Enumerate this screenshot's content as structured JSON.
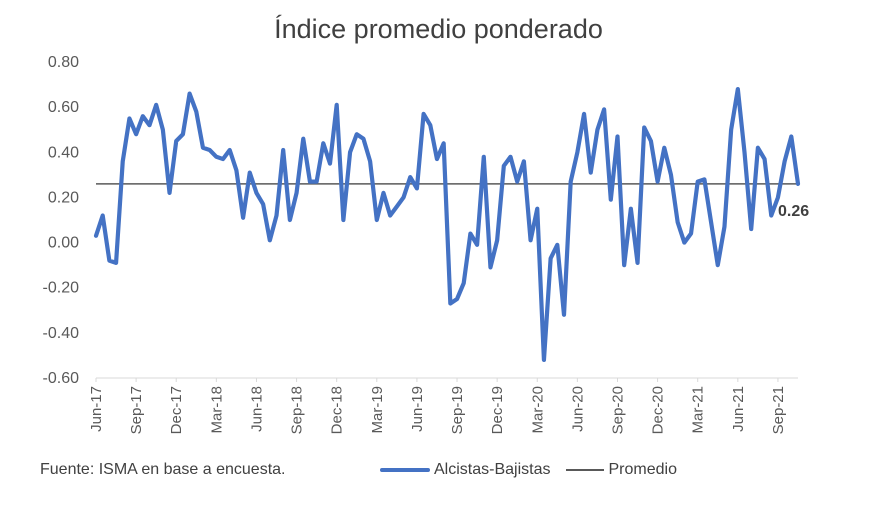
{
  "chart_data": {
    "type": "line",
    "title": "Índice promedio ponderado",
    "ylim": [
      -0.6,
      0.8
    ],
    "y_ticks": [
      "0.80",
      "0.60",
      "0.40",
      "0.20",
      "0.00",
      "-0.20",
      "-0.40",
      "-0.60"
    ],
    "y_tick_values": [
      0.8,
      0.6,
      0.4,
      0.2,
      0.0,
      -0.2,
      -0.4,
      -0.6
    ],
    "x_tick_labels": [
      "Jun-17",
      "Sep-17",
      "Dec-17",
      "Mar-18",
      "Jun-18",
      "Sep-18",
      "Dec-18",
      "Mar-19",
      "Jun-19",
      "Sep-19",
      "Dec-19",
      "Mar-20",
      "Jun-20",
      "Sep-20",
      "Dec-20",
      "Mar-21",
      "Jun-21",
      "Sep-21"
    ],
    "series": [
      {
        "name": "Alcistas-Bajistas",
        "color": "#4472C4",
        "values": [
          0.03,
          0.12,
          -0.08,
          -0.09,
          0.36,
          0.55,
          0.48,
          0.56,
          0.52,
          0.61,
          0.5,
          0.22,
          0.45,
          0.48,
          0.66,
          0.58,
          0.42,
          0.41,
          0.38,
          0.37,
          0.41,
          0.32,
          0.11,
          0.31,
          0.22,
          0.17,
          0.01,
          0.12,
          0.41,
          0.1,
          0.22,
          0.46,
          0.27,
          0.27,
          0.44,
          0.35,
          0.61,
          0.1,
          0.4,
          0.48,
          0.46,
          0.36,
          0.1,
          0.22,
          0.12,
          0.16,
          0.2,
          0.29,
          0.24,
          0.57,
          0.52,
          0.37,
          0.44,
          -0.27,
          -0.25,
          -0.18,
          0.04,
          -0.01,
          0.38,
          -0.11,
          0.01,
          0.34,
          0.38,
          0.27,
          0.36,
          0.01,
          0.15,
          -0.52,
          -0.07,
          -0.01,
          -0.32,
          0.27,
          0.4,
          0.57,
          0.31,
          0.5,
          0.59,
          0.19,
          0.47,
          -0.1,
          0.15,
          -0.09,
          0.51,
          0.45,
          0.27,
          0.42,
          0.3,
          0.09,
          0.0,
          0.04,
          0.27,
          0.28,
          0.09,
          -0.1,
          0.07,
          0.5,
          0.68,
          0.4,
          0.06,
          0.42,
          0.37,
          0.12,
          0.2,
          0.36,
          0.47,
          0.26
        ]
      },
      {
        "name": "Promedio",
        "color": "#595959",
        "value": 0.26
      }
    ],
    "last_value_label": "0.26"
  },
  "footer": {
    "source": "Fuente: ISMA en base a encuesta."
  },
  "legend": {
    "series1": "Alcistas-Bajistas",
    "series2": "Promedio"
  }
}
